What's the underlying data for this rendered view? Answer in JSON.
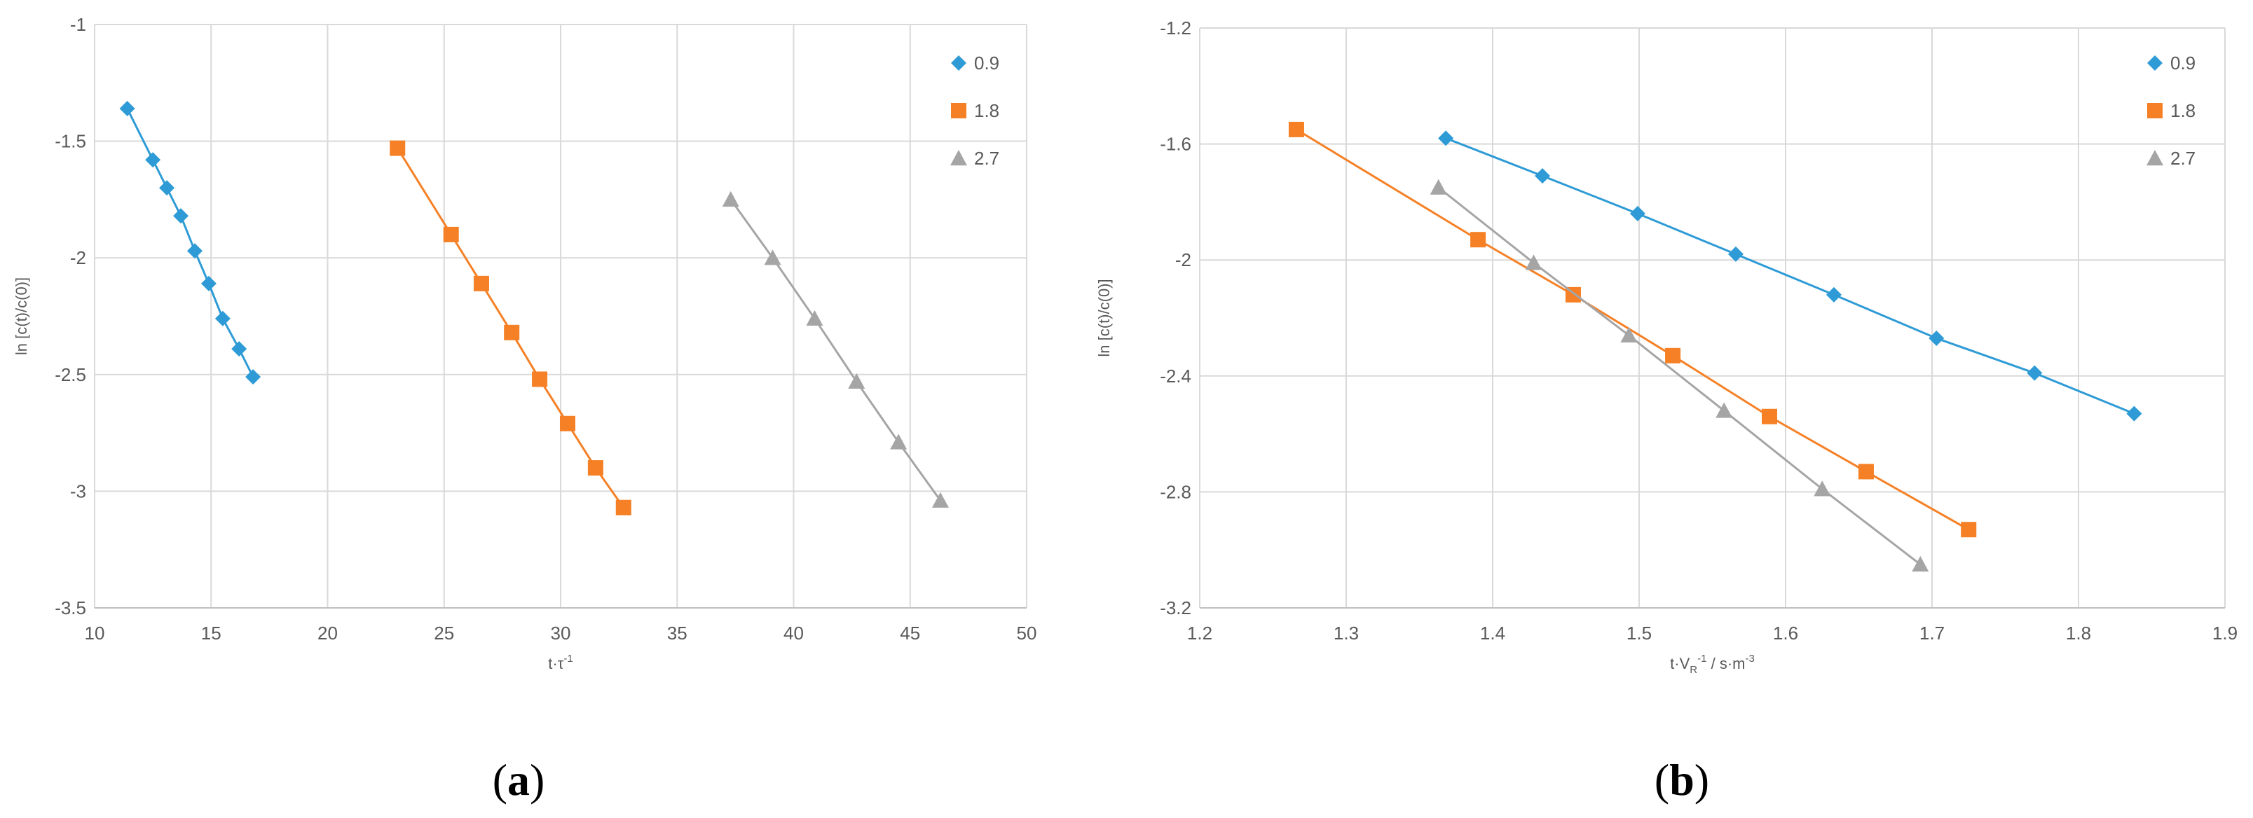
{
  "colors": {
    "s1": "#2E9BD6",
    "s2": "#F58025",
    "s3": "#A5A5A5",
    "grid": "#D9D9D9",
    "axis": "#BFBFBF"
  },
  "panels": [
    {
      "letter": "a",
      "open": "(",
      "close": ")"
    },
    {
      "letter": "b",
      "open": "(",
      "close": ")"
    }
  ],
  "chart_data": [
    {
      "type": "line",
      "title": "",
      "xlabel": "t·τ",
      "xlabel_sup": "-1",
      "ylabel": "ln [c(t)/c(0)]",
      "xlim": [
        10,
        50
      ],
      "ylim": [
        -3.5,
        -1
      ],
      "xticks": [
        10,
        15,
        20,
        25,
        30,
        35,
        40,
        45,
        50
      ],
      "yticks": [
        -3.5,
        -3,
        -2.5,
        -2,
        -1.5,
        -1
      ],
      "xtick_labels": [
        "10",
        "15",
        "20",
        "25",
        "30",
        "35",
        "40",
        "45",
        "50"
      ],
      "ytick_labels": [
        "-3.5",
        "-3",
        "-2.5",
        "-2",
        "-1.5",
        "-1"
      ],
      "grid": true,
      "legend_position": "top-right",
      "series": [
        {
          "name": "0.9",
          "marker": "diamond",
          "x": [
            11.4,
            12.5,
            13.1,
            13.7,
            14.3,
            14.9,
            15.5,
            16.2,
            16.8
          ],
          "y": [
            -1.36,
            -1.58,
            -1.7,
            -1.82,
            -1.97,
            -2.11,
            -2.26,
            -2.39,
            -2.51
          ]
        },
        {
          "name": "1.8",
          "marker": "square",
          "x": [
            23.0,
            25.3,
            26.6,
            27.9,
            29.1,
            30.3,
            31.5,
            32.7
          ],
          "y": [
            -1.53,
            -1.9,
            -2.11,
            -2.32,
            -2.52,
            -2.71,
            -2.9,
            -3.07
          ]
        },
        {
          "name": "2.7",
          "marker": "triangle",
          "x": [
            37.3,
            39.1,
            40.9,
            42.7,
            44.5,
            46.3
          ],
          "y": [
            -1.75,
            -2.0,
            -2.26,
            -2.53,
            -2.79,
            -3.04
          ]
        }
      ]
    },
    {
      "type": "line",
      "title": "",
      "xlabel": "t·V",
      "xlabel_sub": "R",
      "xlabel_sup": "-1",
      "xlabel_tail": " / s·m",
      "xlabel_tail_sup": "-3",
      "ylabel": "ln [c(t)/c(0)]",
      "xlim": [
        1.2,
        1.9
      ],
      "ylim": [
        -3.2,
        -1.2
      ],
      "xticks": [
        1.2,
        1.3,
        1.4,
        1.5,
        1.6,
        1.7,
        1.8,
        1.9
      ],
      "yticks": [
        -3.2,
        -2.8,
        -2.4,
        -2.0,
        -1.6,
        -1.2
      ],
      "xtick_labels": [
        "1.2",
        "1.3",
        "1.4",
        "1.5",
        "1.6",
        "1.7",
        "1.8",
        "1.9"
      ],
      "ytick_labels": [
        "-3.2",
        "-2.8",
        "-2.4",
        "-2",
        "-1.6",
        "-1.2"
      ],
      "grid": true,
      "legend_position": "top-right",
      "series": [
        {
          "name": "0.9",
          "marker": "diamond",
          "x": [
            1.368,
            1.434,
            1.499,
            1.566,
            1.633,
            1.703,
            1.77,
            1.838
          ],
          "y": [
            -1.58,
            -1.71,
            -1.84,
            -1.98,
            -2.12,
            -2.27,
            -2.39,
            -2.53
          ]
        },
        {
          "name": "1.8",
          "marker": "square",
          "x": [
            1.266,
            1.39,
            1.455,
            1.523,
            1.589,
            1.655,
            1.725
          ],
          "y": [
            -1.55,
            -1.93,
            -2.12,
            -2.33,
            -2.54,
            -2.73,
            -2.93
          ]
        },
        {
          "name": "2.7",
          "marker": "triangle",
          "x": [
            1.363,
            1.428,
            1.493,
            1.558,
            1.625,
            1.692
          ],
          "y": [
            -1.75,
            -2.01,
            -2.26,
            -2.52,
            -2.79,
            -3.05
          ]
        }
      ]
    }
  ]
}
